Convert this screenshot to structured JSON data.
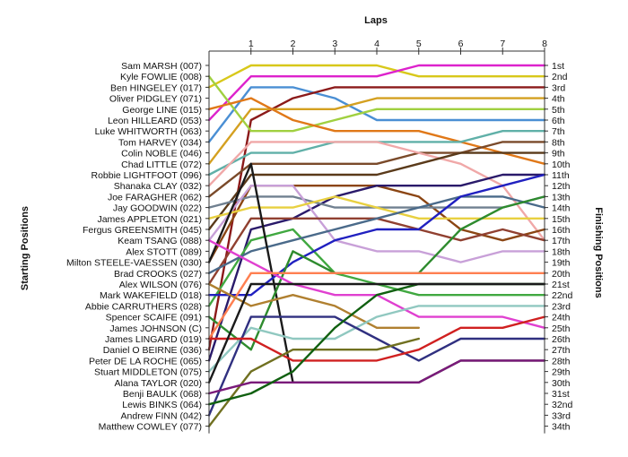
{
  "chart_data": {
    "type": "line",
    "title": "Laps",
    "xlabel": "Laps",
    "ylabel_left": "Starting Positions",
    "ylabel_right": "Finishing Positions",
    "x_ticks": [
      1,
      2,
      3,
      4,
      5,
      6,
      7,
      8
    ],
    "xlim": [
      0,
      8
    ],
    "ylim": [
      1,
      34
    ],
    "y_inverted": true,
    "start_labels": [
      "Sam MARSH (007)",
      "Kyle FOWLIE (008)",
      "Ben HINGELEY (017)",
      "Oliver PIDGLEY (071)",
      "George LINE (015)",
      "Leon HILLEARD (053)",
      "Luke WHITWORTH (063)",
      "Tom HARVEY (034)",
      "Colin NOBLE (046)",
      "Chad LITTLE (072)",
      "Robbie LIGHTFOOT (096)",
      "Shanaka CLAY (032)",
      "Joe FARAGHER (062)",
      "Jay GOODWIN (022)",
      "James APPLETON (021)",
      "Fergus GREENSMITH (045)",
      "Keam TSANG (088)",
      "Alex STOTT (089)",
      "Milton STEELE-VAESSEN (030)",
      "Brad CROOKS (027)",
      "Alex WILSON (076)",
      "Mark WAKEFIELD (018)",
      "Abbie CARRUTHERS (028)",
      "Spencer SCAIFE (091)",
      "James JOHNSON (C)",
      "James LINGARD (019)",
      "Daniel O BEIRNE (036)",
      "Peter DE LA ROCHE (065)",
      "Stuart MIDDLETON (075)",
      "Alana TAYLOR (020)",
      "Benji BAULK (068)",
      "Lewis BINKS (064)",
      "Andrew FINN (042)",
      "Matthew COWLEY (077)"
    ],
    "finish_labels": [
      "1st",
      "2nd",
      "3rd",
      "4th",
      "5th",
      "6th",
      "7th",
      "8th",
      "9th",
      "10th",
      "11th",
      "12th",
      "13th",
      "14th",
      "15th",
      "16th",
      "17th",
      "18th",
      "19th",
      "20th",
      "21st",
      "22nd",
      "23rd",
      "24th",
      "25th",
      "26th",
      "27th",
      "28th",
      "29th",
      "30th",
      "31st",
      "32nd",
      "33rd",
      "34th"
    ],
    "series": [
      {
        "color": "#d8c81a",
        "values": [
          3,
          1,
          1,
          1,
          1,
          2,
          2,
          2,
          2
        ]
      },
      {
        "color": "#dd22cc",
        "values": [
          6,
          2,
          2,
          2,
          2,
          1,
          1,
          1,
          1
        ]
      },
      {
        "color": "#4a8fd4",
        "values": [
          8,
          3,
          3,
          4,
          6,
          6,
          6,
          6,
          6
        ]
      },
      {
        "color": "#8b1a1a",
        "values": [
          27,
          6,
          4,
          3,
          3,
          3,
          3,
          3,
          3
        ]
      },
      {
        "color": "#d4a020",
        "values": [
          10,
          5,
          5,
          5,
          4,
          4,
          4,
          4,
          4
        ]
      },
      {
        "color": "#a0d040",
        "values": [
          2,
          7,
          7,
          6,
          5,
          5,
          5,
          5,
          5
        ]
      },
      {
        "color": "#e07818",
        "values": [
          5,
          4,
          6,
          7,
          7,
          7,
          8,
          9,
          10
        ]
      },
      {
        "color": "#60b0a8",
        "values": [
          11,
          9,
          9,
          8,
          8,
          8,
          8,
          7,
          7
        ]
      },
      {
        "color": "#7a4a2a",
        "values": [
          13,
          10,
          10,
          10,
          10,
          9,
          9,
          8,
          8
        ]
      },
      {
        "color": "#f0a8a8",
        "values": [
          12,
          8,
          8,
          8,
          8,
          9,
          10,
          12,
          17
        ]
      },
      {
        "color": "#5a3a1a",
        "values": [
          16,
          11,
          11,
          11,
          11,
          10,
          9,
          9,
          9
        ]
      },
      {
        "color": "#8b4513",
        "values": [
          19,
          12,
          12,
          12,
          12,
          13,
          16,
          17,
          16
        ]
      },
      {
        "color": "#2a1a6a",
        "values": [
          28,
          16,
          15,
          13,
          12,
          12,
          12,
          11,
          11
        ]
      },
      {
        "color": "#708090",
        "values": [
          14,
          13,
          13,
          14,
          14,
          14,
          14,
          14,
          13
        ]
      },
      {
        "color": "#c8a0d8",
        "values": [
          17,
          12,
          12,
          17,
          18,
          18,
          19,
          18,
          18
        ]
      },
      {
        "color": "#e8d040",
        "values": [
          15,
          14,
          14,
          13,
          14,
          15,
          15,
          15,
          15
        ]
      },
      {
        "color": "#904030",
        "values": [
          21,
          15,
          15,
          15,
          15,
          16,
          17,
          16,
          17
        ]
      },
      {
        "color": "#40a840",
        "values": [
          23,
          17,
          16,
          20,
          21,
          22,
          22,
          22,
          22
        ]
      },
      {
        "color": "#4a6a8a",
        "values": [
          20,
          18,
          17,
          16,
          15,
          14,
          13,
          13,
          14
        ]
      },
      {
        "color": "#1a1a1a",
        "values": [
          19,
          10,
          30,
          30,
          30,
          30,
          28,
          28,
          28
        ]
      },
      {
        "color": "#2020c0",
        "values": [
          22,
          22,
          19,
          17,
          16,
          16,
          13,
          12,
          11
        ]
      },
      {
        "color": "#2e8b2e",
        "values": [
          24,
          27,
          18,
          20,
          20,
          20,
          16,
          14,
          13
        ]
      },
      {
        "color": "#e040d0",
        "values": [
          17,
          19,
          21,
          22,
          22,
          24,
          24,
          24,
          25
        ]
      },
      {
        "color": "#ff7f50",
        "values": [
          26,
          20,
          20,
          20,
          20,
          20,
          20,
          20,
          20
        ]
      },
      {
        "color": "#b08030",
        "values": [
          21,
          23,
          22,
          23,
          25,
          25,
          null,
          null,
          null
        ]
      },
      {
        "color": "#90c8c0",
        "values": [
          29,
          25,
          26,
          26,
          24,
          23,
          23,
          23,
          23
        ]
      },
      {
        "color": "#303080",
        "values": [
          33,
          24,
          24,
          24,
          26,
          28,
          26,
          26,
          26
        ]
      },
      {
        "color": "#d02020",
        "values": [
          26,
          26,
          28,
          28,
          28,
          27,
          25,
          25,
          24
        ]
      },
      {
        "color": "#707020",
        "values": [
          34,
          29,
          27,
          27,
          27,
          26,
          null,
          null,
          null
        ]
      },
      {
        "color": "#7a1a7a",
        "values": [
          31,
          30,
          30,
          30,
          30,
          30,
          28,
          28,
          28
        ]
      },
      {
        "color": "#106010",
        "values": [
          32,
          31,
          29,
          25,
          22,
          21,
          21,
          21,
          21
        ]
      },
      {
        "color": "#1a1a1a",
        "values": [
          30,
          21,
          21,
          21,
          21,
          21,
          21,
          21,
          21
        ]
      }
    ]
  }
}
